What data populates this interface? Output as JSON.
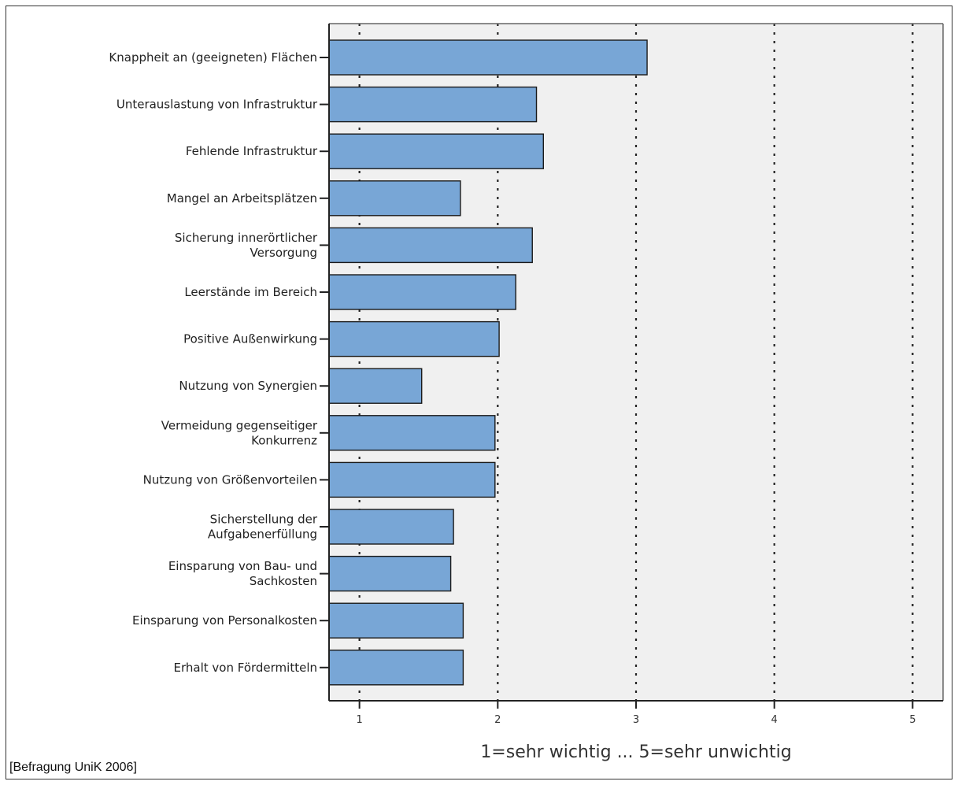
{
  "source_note": "[Befragung UniK 2006]",
  "colors": {
    "bar_fill": "#78a6d6",
    "bar_stroke": "#1a1a1a",
    "plot_background": "#f0f0f0",
    "gridline": "#222222"
  },
  "chart_data": {
    "type": "bar",
    "orientation": "horizontal",
    "title": "",
    "xlabel": "1=sehr wichtig ... 5=sehr unwichtig",
    "ylabel": "",
    "xlim": [
      0.78,
      5.22
    ],
    "xticks": [
      "1",
      "2",
      "3",
      "4",
      "5"
    ],
    "grid": "vertical dotted lines at each x tick",
    "categories": [
      [
        "Knappheit an (geeigneten) Flächen"
      ],
      [
        "Unterauslastung von Infrastruktur"
      ],
      [
        "Fehlende Infrastruktur"
      ],
      [
        "Mangel an Arbeitsplätzen"
      ],
      [
        "Sicherung innerörtlicher",
        "Versorgung"
      ],
      [
        "Leerstände im Bereich"
      ],
      [
        "Positive Außenwirkung"
      ],
      [
        "Nutzung von Synergien"
      ],
      [
        "Vermeidung gegenseitiger",
        "Konkurrenz"
      ],
      [
        "Nutzung von Größenvorteilen"
      ],
      [
        "Sicherstellung der",
        "Aufgabenerfüllung"
      ],
      [
        "Einsparung von Bau- und",
        "Sachkosten"
      ],
      [
        "Einsparung von Personalkosten"
      ],
      [
        "Erhalt von Fördermitteln"
      ]
    ],
    "values": [
      3.08,
      2.28,
      2.33,
      1.73,
      2.25,
      2.13,
      2.01,
      1.45,
      1.98,
      1.98,
      1.68,
      1.66,
      1.75,
      1.75
    ]
  }
}
